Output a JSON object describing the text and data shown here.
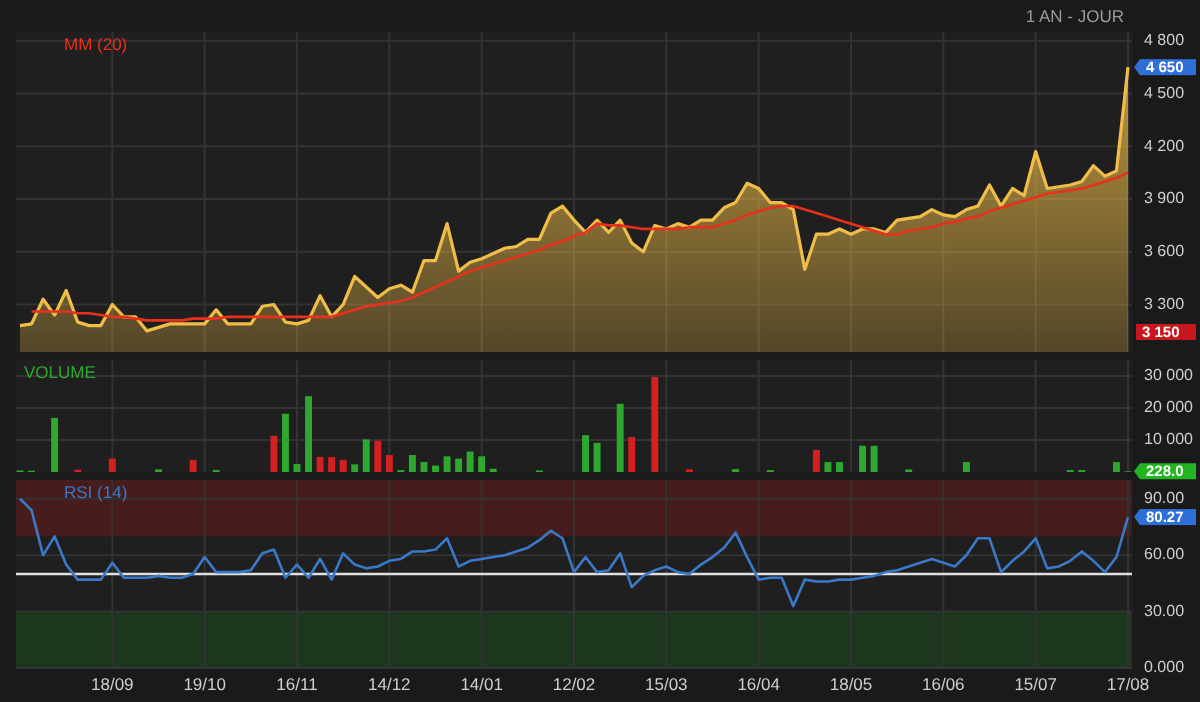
{
  "chart_data": [
    {
      "type": "area",
      "subtitle": "1 AN - JOUR",
      "categories": [
        null,
        null,
        null,
        null,
        null,
        null,
        null,
        null,
        "18/09",
        null,
        null,
        null,
        null,
        null,
        null,
        null,
        "19/10",
        null,
        null,
        null,
        null,
        null,
        null,
        null,
        "16/11",
        null,
        null,
        null,
        null,
        null,
        null,
        null,
        "14/12",
        null,
        null,
        null,
        null,
        null,
        null,
        null,
        "14/01",
        null,
        null,
        null,
        null,
        null,
        null,
        null,
        "12/02",
        null,
        null,
        null,
        null,
        null,
        null,
        null,
        "15/03",
        null,
        null,
        null,
        null,
        null,
        null,
        null,
        "16/04",
        null,
        null,
        null,
        null,
        null,
        null,
        null,
        "18/05",
        null,
        null,
        null,
        null,
        null,
        null,
        null,
        "16/06",
        null,
        null,
        null,
        null,
        null,
        null,
        null,
        "15/07",
        null,
        null,
        null,
        null,
        null,
        null,
        null,
        "17/08"
      ],
      "series": [
        {
          "color": "#f0be48",
          "values": [
            3180,
            3190,
            3330,
            3240,
            3380,
            3200,
            3180,
            3180,
            3300,
            3230,
            3230,
            3150,
            3170,
            3190,
            3190,
            3190,
            3190,
            3270,
            3190,
            3190,
            3190,
            3290,
            3300,
            3200,
            3190,
            3210,
            3350,
            3230,
            3300,
            3460,
            3400,
            3340,
            3390,
            3410,
            3370,
            3550,
            3550,
            3760,
            3490,
            3540,
            3560,
            3590,
            3620,
            3630,
            3670,
            3670,
            3820,
            3860,
            3780,
            3710,
            3780,
            3710,
            3780,
            3650,
            3600,
            3750,
            3730,
            3760,
            3740,
            3780,
            3780,
            3850,
            3880,
            3990,
            3960,
            3880,
            3880,
            3840,
            3500,
            3700,
            3700,
            3730,
            3700,
            3730,
            3730,
            3710,
            3780,
            3790,
            3800,
            3840,
            3810,
            3800,
            3840,
            3860,
            3980,
            3860,
            3960,
            3920,
            4170,
            3960,
            3970,
            3980,
            4000,
            4090,
            4030,
            4060,
            4650
          ]
        },
        {
          "type": "line",
          "name": "MM (20)",
          "color": "#e8301c",
          "values": [
            null,
            3260,
            3260,
            3260,
            3260,
            3250,
            3250,
            3240,
            3230,
            3230,
            3220,
            3210,
            3210,
            3210,
            3210,
            3220,
            3220,
            3220,
            3230,
            3230,
            3230,
            3230,
            3230,
            3230,
            3230,
            3230,
            3230,
            3230,
            3250,
            3270,
            3290,
            3300,
            3310,
            3320,
            3340,
            3370,
            3400,
            3430,
            3460,
            3490,
            3510,
            3530,
            3550,
            3570,
            3590,
            3610,
            3640,
            3660,
            3690,
            3710,
            3760,
            3750,
            3750,
            3740,
            3730,
            3730,
            3730,
            3730,
            3740,
            3740,
            3740,
            3760,
            3780,
            3810,
            3830,
            3850,
            3860,
            3860,
            3840,
            3820,
            3800,
            3780,
            3760,
            3740,
            3720,
            3700,
            3700,
            3720,
            3730,
            3740,
            3760,
            3770,
            3790,
            3800,
            3830,
            3850,
            3870,
            3890,
            3910,
            3930,
            3940,
            3950,
            3960,
            3980,
            4000,
            4020,
            4050
          ]
        }
      ],
      "ylim": [
        3030,
        4850
      ],
      "yticks": [
        {
          "value": 3300,
          "label": "3 300"
        },
        {
          "value": 3600,
          "label": "3 600"
        },
        {
          "value": 3900,
          "label": "3 900"
        },
        {
          "value": 4200,
          "label": "4 200"
        },
        {
          "value": 4500,
          "label": "4 500"
        },
        {
          "value": 4800,
          "label": "4 800"
        }
      ],
      "annotations": [
        {
          "text": "4 650",
          "x": "17/08",
          "y": 4650
        },
        "3 150"
      ],
      "grid": true,
      "legend": "top left",
      "tick_labels": "y"
    },
    {
      "type": "bar",
      "title": "VOLUME",
      "categories": [
        null,
        null,
        null,
        null,
        null,
        null,
        null,
        null,
        "18/09",
        null,
        null,
        null,
        null,
        null,
        null,
        null,
        "19/10",
        null,
        null,
        null,
        null,
        null,
        null,
        null,
        "16/11",
        null,
        null,
        null,
        null,
        null,
        null,
        null,
        "14/12",
        null,
        null,
        null,
        null,
        null,
        null,
        null,
        "14/01",
        null,
        null,
        null,
        null,
        null,
        null,
        null,
        "12/02",
        null,
        null,
        null,
        null,
        null,
        null,
        null,
        "15/03",
        null,
        null,
        null,
        null,
        null,
        null,
        null,
        "16/04",
        null,
        null,
        null,
        null,
        null,
        null,
        null,
        "18/05",
        null,
        null,
        null,
        null,
        null,
        null,
        null,
        "16/06",
        null,
        null,
        null,
        null,
        null,
        null,
        null,
        "15/07",
        null,
        null,
        null,
        null,
        null,
        null,
        null,
        "17/08"
      ],
      "series": [
        {
          "color": "#2ea82e",
          "values": [
            500,
            400,
            null,
            16900,
            null,
            700,
            null,
            null,
            4200,
            null,
            null,
            null,
            800,
            null,
            null,
            3800,
            null,
            600,
            null,
            null,
            null,
            null,
            11300,
            18200,
            2500,
            23700,
            4700,
            4700,
            3800,
            2400,
            10200,
            9800,
            5300,
            600,
            5300,
            3100,
            2000,
            4900,
            4200,
            6400,
            4900,
            1000,
            null,
            null,
            null,
            500,
            null,
            null,
            null,
            11500,
            9100,
            null,
            21300,
            10900,
            null,
            29700,
            null,
            null,
            800,
            null,
            null,
            null,
            900,
            null,
            null,
            600,
            null,
            null,
            null,
            6900,
            3100,
            3100,
            null,
            8200,
            8200,
            null,
            null,
            800,
            null,
            null,
            null,
            null,
            3100,
            null,
            null,
            null,
            null,
            null,
            null,
            null,
            null,
            600,
            600,
            null,
            null,
            3100,
            228
          ],
          "colors": [
            "#2ea82e",
            "#2ea82e",
            null,
            "#2ea82e",
            null,
            "#d42020",
            null,
            null,
            "#d42020",
            null,
            null,
            null,
            "#2ea82e",
            null,
            null,
            "#d42020",
            null,
            "#2ea82e",
            null,
            null,
            null,
            null,
            "#d42020",
            "#2ea82e",
            "#2ea82e",
            "#2ea82e",
            "#d42020",
            "#d42020",
            "#d42020",
            "#2ea82e",
            "#2ea82e",
            "#d42020",
            "#d42020",
            "#2ea82e",
            "#2ea82e",
            "#2ea82e",
            "#2ea82e",
            "#2ea82e",
            "#2ea82e",
            "#2ea82e",
            "#2ea82e",
            "#2ea82e",
            null,
            null,
            null,
            "#2ea82e",
            null,
            null,
            null,
            "#2ea82e",
            "#2ea82e",
            null,
            "#2ea82e",
            "#d42020",
            null,
            "#d42020",
            null,
            null,
            "#d42020",
            null,
            null,
            null,
            "#2ea82e",
            null,
            null,
            "#2ea82e",
            null,
            null,
            null,
            "#d42020",
            "#2ea82e",
            "#2ea82e",
            null,
            "#2ea82e",
            "#2ea82e",
            null,
            null,
            "#2ea82e",
            null,
            null,
            null,
            null,
            "#2ea82e",
            null,
            null,
            null,
            null,
            null,
            null,
            null,
            null,
            "#2ea82e",
            "#2ea82e",
            null,
            null,
            "#2ea82e",
            "#2ea82e"
          ]
        }
      ],
      "ylim": [
        0,
        35000
      ],
      "yticks": [
        {
          "value": 10000,
          "label": "10 000"
        },
        {
          "value": 20000,
          "label": "20 000"
        },
        {
          "value": 30000,
          "label": "30 000"
        }
      ],
      "annotations": [
        {
          "text": "228.0",
          "x": "17/08",
          "y": 228
        }
      ],
      "grid": true,
      "tick_labels": "y"
    },
    {
      "type": "line",
      "categories": [
        null,
        null,
        null,
        null,
        null,
        null,
        null,
        null,
        "18/09",
        null,
        null,
        null,
        null,
        null,
        null,
        null,
        "19/10",
        null,
        null,
        null,
        null,
        null,
        null,
        null,
        "16/11",
        null,
        null,
        null,
        null,
        null,
        null,
        null,
        "14/12",
        null,
        null,
        null,
        null,
        null,
        null,
        null,
        "14/01",
        null,
        null,
        null,
        null,
        null,
        null,
        null,
        "12/02",
        null,
        null,
        null,
        null,
        null,
        null,
        null,
        "15/03",
        null,
        null,
        null,
        null,
        null,
        null,
        null,
        "16/04",
        null,
        null,
        null,
        null,
        null,
        null,
        null,
        "18/05",
        null,
        null,
        null,
        null,
        null,
        null,
        null,
        "16/06",
        null,
        null,
        null,
        null,
        null,
        null,
        null,
        "15/07",
        null,
        null,
        null,
        null,
        null,
        null,
        null,
        "17/08"
      ],
      "series": [
        {
          "name": "RSI (14)",
          "color": "#3a78c8",
          "values": [
            90,
            84,
            60,
            70,
            55,
            47,
            47,
            47,
            56,
            48,
            48,
            48,
            49,
            48,
            48,
            50,
            59,
            51,
            51,
            51,
            52,
            61,
            63,
            48,
            55,
            48,
            58,
            47,
            61,
            55,
            53,
            54,
            57,
            58,
            62,
            62,
            63,
            69,
            54,
            57,
            58,
            59,
            60,
            62,
            64,
            68,
            73,
            69,
            51,
            59,
            51,
            52,
            61,
            43,
            49,
            52,
            54,
            51,
            50,
            55,
            59,
            64,
            72,
            59,
            47,
            48,
            48,
            33,
            47,
            46,
            46,
            47,
            47,
            48,
            49,
            51,
            52,
            54,
            56,
            58,
            56,
            54,
            60,
            69,
            69,
            51,
            57,
            62,
            69,
            53,
            54,
            57,
            62,
            57,
            51,
            59,
            80.27
          ]
        }
      ],
      "ylim": [
        0,
        100
      ],
      "yticks": [
        {
          "value": 0,
          "label": "0.000"
        },
        {
          "value": 30,
          "label": "30.00"
        },
        {
          "value": 60,
          "label": "60.00"
        },
        {
          "value": 90,
          "label": "90.00"
        }
      ],
      "bands": [
        {
          "axis": "y",
          "from": 70,
          "to": 100,
          "color": "#4a1c1c"
        },
        {
          "axis": "y",
          "from": 0,
          "to": 30,
          "color": "#1c3a1c"
        }
      ],
      "ref_lines": [
        {
          "axis": "y",
          "value": 50,
          "color": "#e0e0e0"
        }
      ],
      "annotations": [
        {
          "text": "80.27",
          "x": "17/08",
          "y": 80.27
        }
      ],
      "grid": true,
      "legend": "top left"
    }
  ]
}
